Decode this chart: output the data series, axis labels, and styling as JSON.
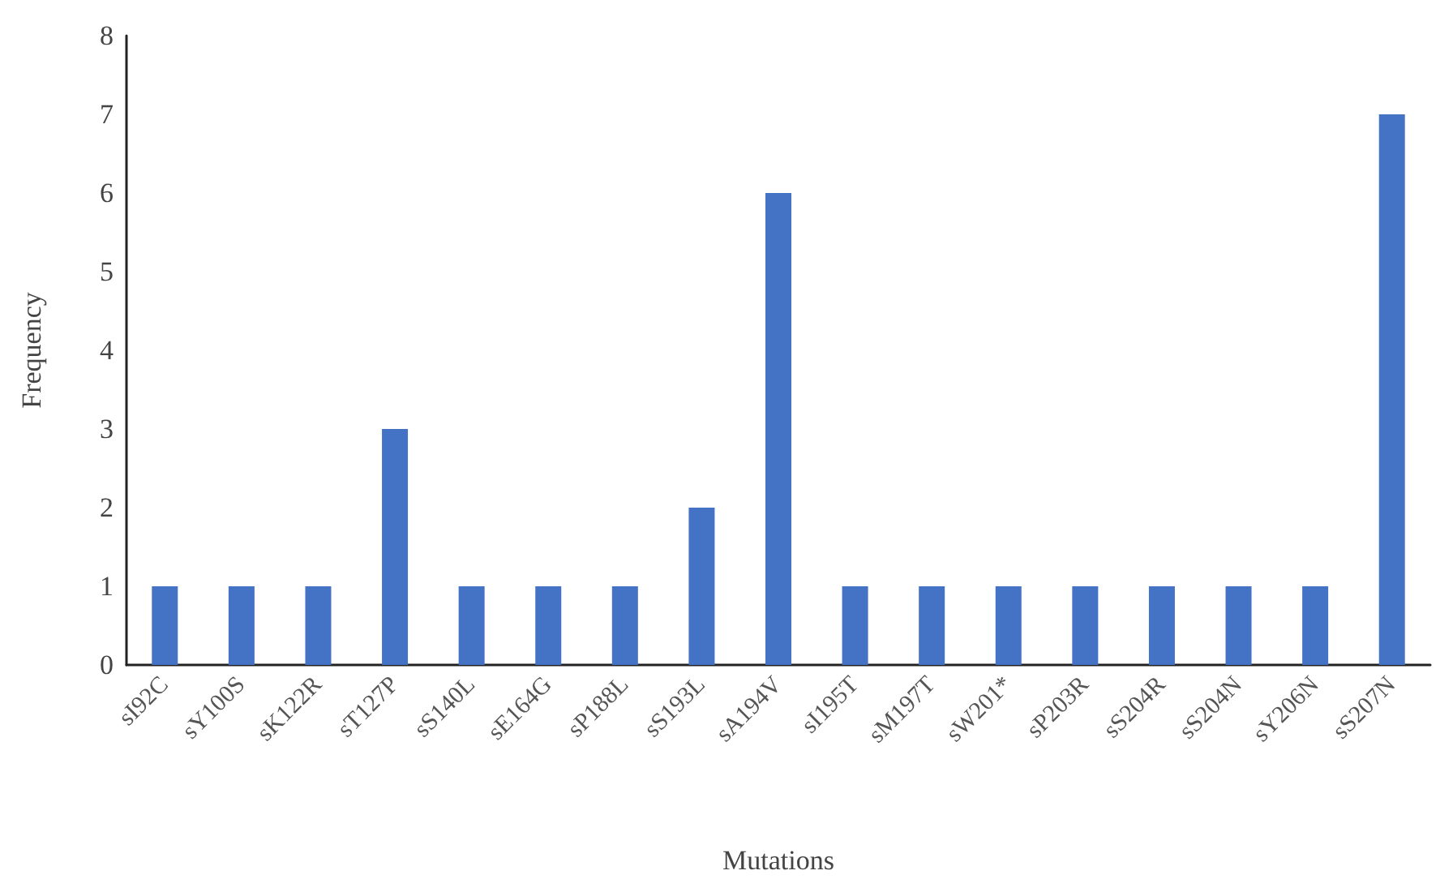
{
  "chart_data": {
    "type": "bar",
    "xlabel": "Mutations",
    "ylabel": "Frequency",
    "categories": [
      "sI92C",
      "sY100S",
      "sK122R",
      "sT127P",
      "sS140L",
      "sE164G",
      "sP188L",
      "sS193L",
      "sA194V",
      "sI195T",
      "sM197T",
      "sW201*",
      "sP203R",
      "sS204R",
      "sS204N",
      "sY206N",
      "sS207N"
    ],
    "values": [
      1,
      1,
      1,
      3,
      1,
      1,
      1,
      2,
      6,
      1,
      1,
      1,
      1,
      1,
      1,
      1,
      7
    ],
    "color": "#4472c4",
    "ylim": [
      0,
      8
    ],
    "yticks": [
      0,
      1,
      2,
      3,
      4,
      5,
      6,
      7,
      8
    ]
  }
}
